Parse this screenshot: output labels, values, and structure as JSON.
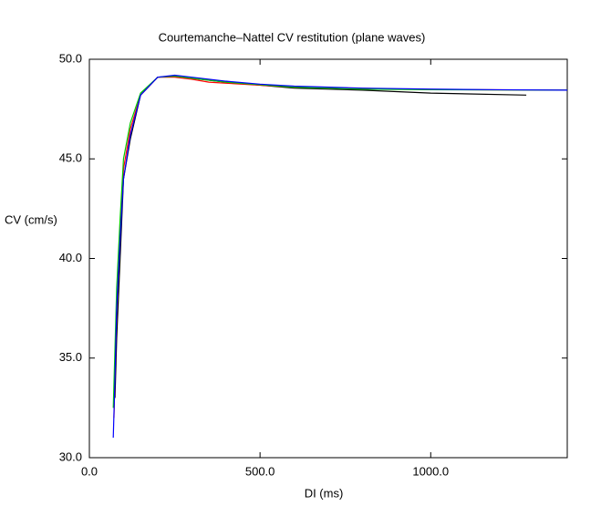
{
  "chart_data": {
    "type": "line",
    "title": "Courtemanche–Nattel CV restitution (plane waves)",
    "xlabel": "DI (ms)",
    "ylabel": "CV (cm/s)",
    "xlim": [
      0,
      1400
    ],
    "ylim": [
      30,
      50
    ],
    "xticks": [
      {
        "value": 0,
        "label": "0.0"
      },
      {
        "value": 500,
        "label": "500.0"
      },
      {
        "value": 1000,
        "label": "1000.0"
      }
    ],
    "yticks": [
      {
        "value": 30,
        "label": "30.0"
      },
      {
        "value": 35,
        "label": "35.0"
      },
      {
        "value": 40,
        "label": "40.0"
      },
      {
        "value": 45,
        "label": "45.0"
      },
      {
        "value": 50,
        "label": "50.0"
      }
    ],
    "series": [
      {
        "color": "#000000",
        "x": [
          75,
          80,
          90,
          100,
          120,
          150,
          200,
          250,
          300,
          400,
          500,
          600,
          800,
          1000,
          1280
        ],
        "values": [
          33,
          36,
          40,
          44,
          46,
          48.2,
          49.1,
          49.15,
          49.05,
          48.85,
          48.7,
          48.55,
          48.45,
          48.3,
          48.2
        ]
      },
      {
        "color": "#ff0000",
        "x": [
          72,
          80,
          90,
          100,
          120,
          150,
          200,
          250,
          300,
          350,
          400,
          600,
          1000,
          1400
        ],
        "values": [
          32,
          37.5,
          41.5,
          44.5,
          46.5,
          48.2,
          49.1,
          49.1,
          49,
          48.85,
          48.8,
          48.6,
          48.48,
          48.45
        ]
      },
      {
        "color": "#00cc00",
        "x": [
          70,
          75,
          80,
          90,
          100,
          120,
          150,
          200,
          250,
          300,
          400,
          600,
          800,
          1000,
          1400
        ],
        "values": [
          32.5,
          35.5,
          38.5,
          42,
          45,
          46.8,
          48.3,
          49.1,
          49.15,
          49.05,
          48.85,
          48.6,
          48.5,
          48.47,
          48.45
        ]
      },
      {
        "color": "#0000ff",
        "x": [
          70,
          75,
          80,
          90,
          100,
          120,
          150,
          200,
          250,
          300,
          400,
          500,
          600,
          800,
          1000,
          1200,
          1400
        ],
        "values": [
          31,
          34,
          37.5,
          41,
          44,
          46.2,
          48.2,
          49.1,
          49.2,
          49.1,
          48.9,
          48.75,
          48.65,
          48.55,
          48.5,
          48.47,
          48.45
        ]
      }
    ]
  }
}
